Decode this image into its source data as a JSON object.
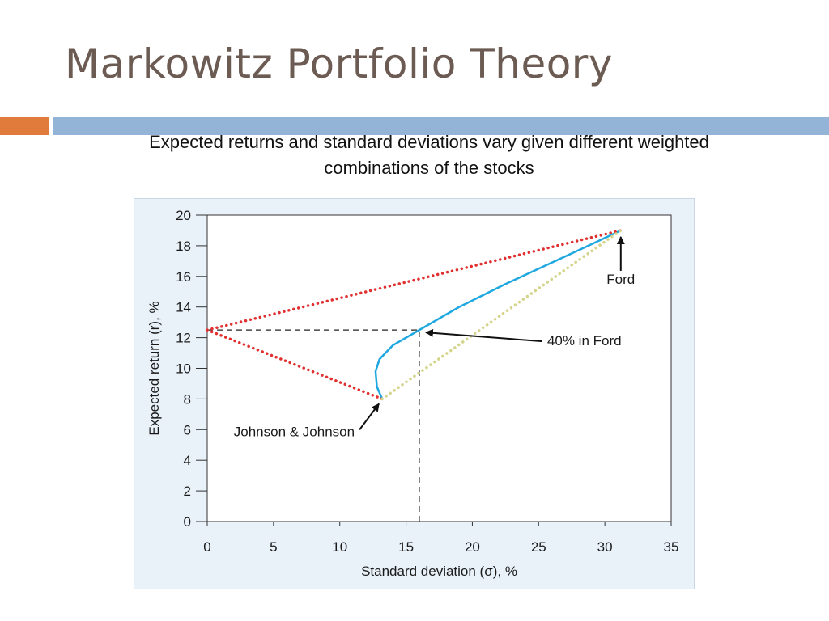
{
  "slide": {
    "title": "Markowitz Portfolio Theory",
    "subtitle": "Expected returns and standard deviations vary given different weighted combinations of the stocks",
    "accent_colors": {
      "orange": "#e07b3c",
      "blue": "#93b4d6"
    }
  },
  "chart_data": {
    "type": "line",
    "xlabel": "Standard deviation (σ), %",
    "ylabel": "Expected return (r), %",
    "xlim": [
      0,
      35
    ],
    "ylim": [
      0,
      20
    ],
    "x_ticks": [
      0,
      5,
      10,
      15,
      20,
      25,
      30,
      35
    ],
    "y_ticks": [
      0,
      2,
      4,
      6,
      8,
      10,
      12,
      14,
      16,
      18,
      20
    ],
    "grid": false,
    "series": [
      {
        "style": "solid",
        "color": "#1fa8e0",
        "x": [
          13.2,
          12.8,
          12.7,
          13.0,
          14.0,
          16.0,
          19.0,
          22.5,
          26.0,
          29.0,
          31.2
        ],
        "y": [
          8.0,
          8.8,
          9.8,
          10.6,
          11.5,
          12.5,
          14.0,
          15.5,
          16.9,
          18.1,
          19.0
        ]
      },
      {
        "style": "dotted",
        "color": "#e03030",
        "x": [
          0,
          31.2
        ],
        "y": [
          12.5,
          19.0
        ]
      },
      {
        "style": "dotted",
        "color": "#e03030",
        "x": [
          0,
          13.2
        ],
        "y": [
          12.5,
          8.0
        ]
      },
      {
        "style": "dotted",
        "color": "#d4d48a",
        "x": [
          13.2,
          31.2
        ],
        "y": [
          8.0,
          19.0
        ]
      }
    ],
    "reference_lines": [
      {
        "x": [
          0,
          16.0
        ],
        "y": [
          12.5,
          12.5
        ]
      },
      {
        "x": [
          16.0,
          16.0
        ],
        "y": [
          0,
          12.5
        ]
      }
    ],
    "annotations": [
      {
        "text": "Ford",
        "point": [
          31.2,
          19.0
        ]
      },
      {
        "text": "40% in Ford",
        "point": [
          16.0,
          12.5
        ]
      },
      {
        "text": "Johnson & Johnson",
        "point": [
          13.2,
          8.0
        ]
      }
    ]
  }
}
